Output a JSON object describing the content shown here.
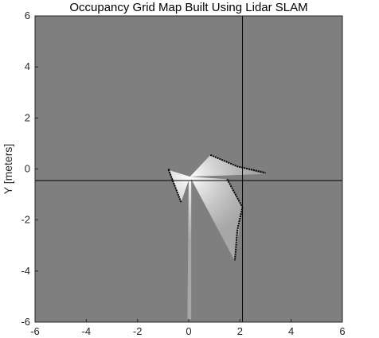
{
  "chart_data": {
    "type": "heatmap",
    "title": "Occupancy Grid Map Built Using Lidar SLAM",
    "xlabel": "",
    "ylabel": "Y [meters]",
    "xlim": [
      -6,
      6
    ],
    "ylim": [
      -6,
      6
    ],
    "xticks": [
      -6,
      -4,
      -2,
      0,
      2,
      4,
      6
    ],
    "yticks": [
      -6,
      -4,
      -2,
      0,
      2,
      4,
      6
    ],
    "xtick_labels": [
      "-6",
      "-4",
      "-2",
      "0",
      "2",
      "4",
      "6"
    ],
    "ytick_labels": [
      "-6",
      "-4",
      "-2",
      "0",
      "2",
      "4",
      "6"
    ],
    "unknown_color": "#7f7f7f",
    "free_color": "#ffffff",
    "occupied_color": "#000000",
    "free_regions": [
      {
        "name": "upper-left-sweep",
        "points": [
          [
            0.05,
            -0.3
          ],
          [
            -0.75,
            -0.05
          ],
          [
            -0.3,
            -1.3
          ]
        ]
      },
      {
        "name": "upper-right-sweep",
        "points": [
          [
            0.05,
            -0.3
          ],
          [
            0.85,
            0.55
          ],
          [
            1.9,
            0.1
          ],
          [
            2.9,
            -0.2
          ]
        ]
      },
      {
        "name": "lower-right-sweep",
        "points": [
          [
            0.05,
            -0.3
          ],
          [
            1.5,
            -0.4
          ],
          [
            2.1,
            -1.5
          ],
          [
            1.8,
            -3.6
          ]
        ]
      },
      {
        "name": "lower-corridor",
        "points": [
          [
            0.0,
            -0.3
          ],
          [
            0.1,
            -0.3
          ],
          [
            0.1,
            -5.9
          ],
          [
            -0.05,
            -5.9
          ]
        ]
      }
    ],
    "obstacle_lines": [
      [
        [
          -0.75,
          -0.05
        ],
        [
          -0.8,
          0.0
        ],
        [
          -0.3,
          -1.3
        ]
      ],
      [
        [
          0.85,
          0.55
        ],
        [
          1.9,
          0.1
        ],
        [
          3.0,
          -0.15
        ]
      ],
      [
        [
          1.5,
          -0.4
        ],
        [
          2.1,
          -1.5
        ],
        [
          1.9,
          -2.4
        ],
        [
          1.8,
          -3.6
        ]
      ]
    ],
    "crosshair": {
      "x": 2.1,
      "y": -0.45
    }
  }
}
